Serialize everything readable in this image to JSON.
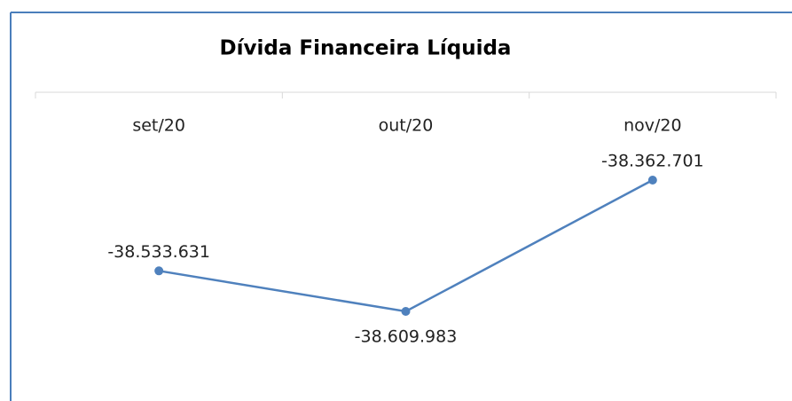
{
  "chart_data": {
    "type": "line",
    "title": "Dívida Financeira Líquida",
    "categories": [
      "set/20",
      "out/20",
      "nov/20"
    ],
    "series": [
      {
        "name": "Dívida Financeira Líquida",
        "color": "#4f81bd",
        "values": [
          -38533631,
          -38609983,
          -38362701
        ],
        "value_labels": [
          "-38.533.631",
          "-38.609.983",
          "-38.362.701"
        ]
      }
    ]
  }
}
